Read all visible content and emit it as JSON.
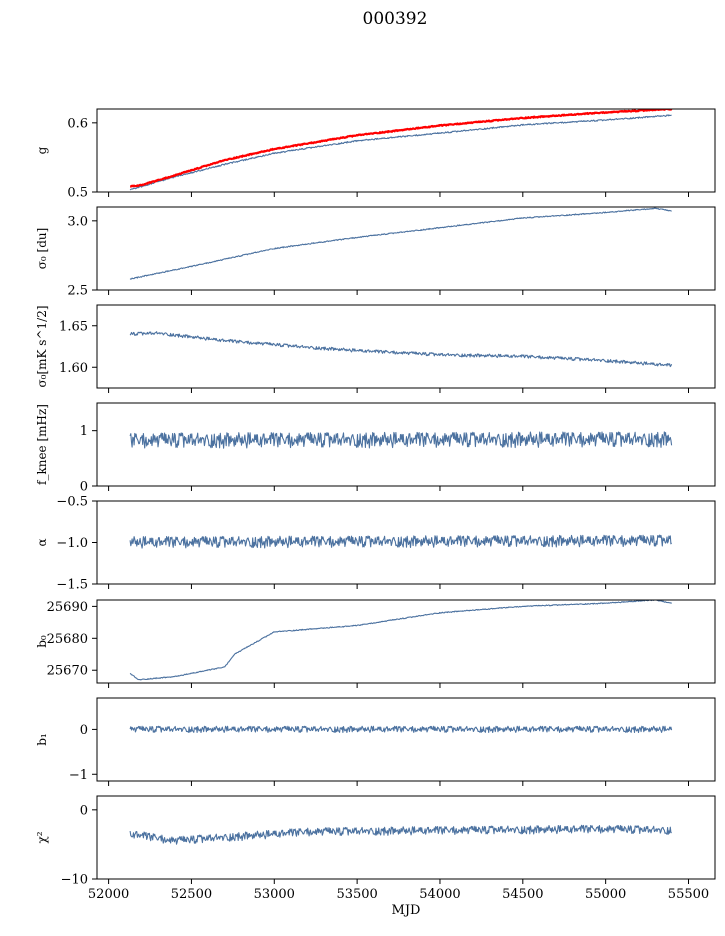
{
  "title": "000392",
  "chart_data": {
    "type": "line",
    "x_label": "MJD",
    "xlim": [
      51930,
      55660
    ],
    "x_ticks": [
      52000,
      52500,
      53000,
      53500,
      54000,
      54500,
      55000,
      55500
    ],
    "x_range": [
      52130,
      55400
    ],
    "colors": {
      "series": "#4c72a0",
      "reference": "#ff0000"
    },
    "panels": [
      {
        "id": "g",
        "ylabel": "g",
        "ylim": [
          0.5,
          0.62
        ],
        "yticks": [
          0.5,
          0.6
        ],
        "series": [
          {
            "role": "measured",
            "color": "#4c72a0",
            "noise": 0.001,
            "points": [
              [
                52130,
                0.503
              ],
              [
                52200,
                0.508
              ],
              [
                52400,
                0.522
              ],
              [
                52700,
                0.54
              ],
              [
                53000,
                0.556
              ],
              [
                53500,
                0.574
              ],
              [
                54000,
                0.585
              ],
              [
                54500,
                0.597
              ],
              [
                55000,
                0.604
              ],
              [
                55400,
                0.611
              ]
            ]
          },
          {
            "role": "reference",
            "color": "#ff0000",
            "noise": 0.0008,
            "width": 2.2,
            "points": [
              [
                52130,
                0.508
              ],
              [
                52200,
                0.51
              ],
              [
                52400,
                0.524
              ],
              [
                52700,
                0.546
              ],
              [
                53000,
                0.562
              ],
              [
                53500,
                0.582
              ],
              [
                54000,
                0.596
              ],
              [
                54500,
                0.607
              ],
              [
                55000,
                0.615
              ],
              [
                55400,
                0.62
              ]
            ]
          }
        ]
      },
      {
        "id": "sigma0-du",
        "ylabel": "σ₀ [du]",
        "ylim": [
          2.5,
          3.1
        ],
        "yticks": [
          2.5,
          3.0
        ],
        "series": [
          {
            "color": "#4c72a0",
            "noise": 0.004,
            "points": [
              [
                52130,
                2.58
              ],
              [
                52500,
                2.67
              ],
              [
                53000,
                2.8
              ],
              [
                53500,
                2.88
              ],
              [
                54000,
                2.95
              ],
              [
                54500,
                3.02
              ],
              [
                55000,
                3.06
              ],
              [
                55300,
                3.09
              ],
              [
                55400,
                3.07
              ]
            ]
          }
        ]
      },
      {
        "id": "sigma0-mk",
        "ylabel": "σ₀[mK s^1/2]",
        "ylim": [
          1.575,
          1.675
        ],
        "yticks": [
          1.6,
          1.65
        ],
        "series": [
          {
            "color": "#4c72a0",
            "noise": 0.002,
            "points": [
              [
                52130,
                1.64
              ],
              [
                52300,
                1.641
              ],
              [
                52700,
                1.632
              ],
              [
                53200,
                1.624
              ],
              [
                53500,
                1.62
              ],
              [
                54000,
                1.615
              ],
              [
                54500,
                1.613
              ],
              [
                55000,
                1.608
              ],
              [
                55400,
                1.602
              ]
            ]
          }
        ]
      },
      {
        "id": "fknee",
        "ylabel": "f_knee [mHz]",
        "ylim": [
          0,
          1.5
        ],
        "yticks": [
          0,
          1
        ],
        "series": [
          {
            "color": "#4c72a0",
            "noise": 0.14,
            "points": [
              [
                52130,
                0.82
              ],
              [
                55400,
                0.84
              ]
            ]
          }
        ]
      },
      {
        "id": "alpha",
        "ylabel": "α",
        "ylim": [
          -1.5,
          -0.5
        ],
        "yticks": [
          -1.5,
          -1.0,
          -0.5
        ],
        "series": [
          {
            "color": "#4c72a0",
            "noise": 0.07,
            "points": [
              [
                52130,
                -1.0
              ],
              [
                55400,
                -0.98
              ]
            ]
          }
        ]
      },
      {
        "id": "b0",
        "ylabel": "b₀",
        "ylim": [
          25666,
          25692
        ],
        "yticks": [
          25670,
          25680,
          25690
        ],
        "series": [
          {
            "color": "#4c72a0",
            "noise": 0.15,
            "points": [
              [
                52130,
                25669
              ],
              [
                52180,
                25667
              ],
              [
                52400,
                25668
              ],
              [
                52700,
                25671
              ],
              [
                52760,
                25675
              ],
              [
                53000,
                25682
              ],
              [
                53500,
                25684
              ],
              [
                54000,
                25688
              ],
              [
                54500,
                25690
              ],
              [
                55000,
                25691
              ],
              [
                55300,
                25692
              ],
              [
                55400,
                25691
              ]
            ]
          }
        ]
      },
      {
        "id": "b1",
        "ylabel": "b₁",
        "ylim": [
          -1.15,
          0.7
        ],
        "yticks": [
          -1,
          0
        ],
        "series": [
          {
            "color": "#4c72a0",
            "noise": 0.07,
            "points": [
              [
                52130,
                0.0
              ],
              [
                55400,
                0.0
              ]
            ]
          }
        ]
      },
      {
        "id": "chi2",
        "ylabel": "χ²",
        "ylim": [
          -10,
          2
        ],
        "yticks": [
          -10,
          0
        ],
        "series": [
          {
            "color": "#4c72a0",
            "noise": 0.6,
            "points": [
              [
                52130,
                -3.5
              ],
              [
                52400,
                -4.5
              ],
              [
                52700,
                -4.0
              ],
              [
                53200,
                -3.2
              ],
              [
                54000,
                -3.0
              ],
              [
                55000,
                -2.8
              ],
              [
                55400,
                -3.0
              ]
            ]
          }
        ]
      }
    ]
  }
}
